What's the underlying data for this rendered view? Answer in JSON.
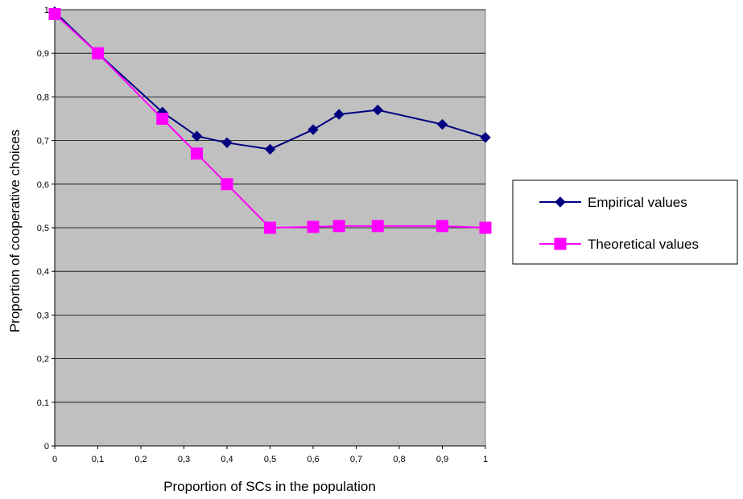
{
  "chart_data": {
    "type": "line",
    "xlabel": "Proportion of SCs in the population",
    "ylabel": "Proportion of cooperative choices",
    "xlim": [
      0,
      1
    ],
    "ylim": [
      0,
      1
    ],
    "x_ticks": [
      "0",
      "0,1",
      "0,2",
      "0,3",
      "0,4",
      "0,5",
      "0,6",
      "0,7",
      "0,8",
      "0,9",
      "1"
    ],
    "y_ticks": [
      "0",
      "0,1",
      "0,2",
      "0,3",
      "0,4",
      "0,5",
      "0,6",
      "0,7",
      "0,8",
      "0,9",
      "1"
    ],
    "grid": "horizontal",
    "plot_background": "#c0c0c0",
    "legend_position": "right",
    "series": [
      {
        "name": "Empirical values",
        "color": "#000080",
        "marker": "diamond",
        "x": [
          0,
          0.1,
          0.25,
          0.33,
          0.4,
          0.5,
          0.6,
          0.66,
          0.75,
          0.9,
          1
        ],
        "values": [
          0.995,
          0.9,
          0.765,
          0.71,
          0.695,
          0.68,
          0.725,
          0.76,
          0.77,
          0.737,
          0.707
        ]
      },
      {
        "name": "Theoretical values",
        "color": "#ff00ff",
        "marker": "square",
        "x": [
          0,
          0.1,
          0.25,
          0.33,
          0.4,
          0.5,
          0.6,
          0.66,
          0.75,
          0.9,
          1
        ],
        "values": [
          0.99,
          0.9,
          0.75,
          0.67,
          0.6,
          0.5,
          0.502,
          0.504,
          0.504,
          0.504,
          0.5
        ]
      }
    ]
  }
}
